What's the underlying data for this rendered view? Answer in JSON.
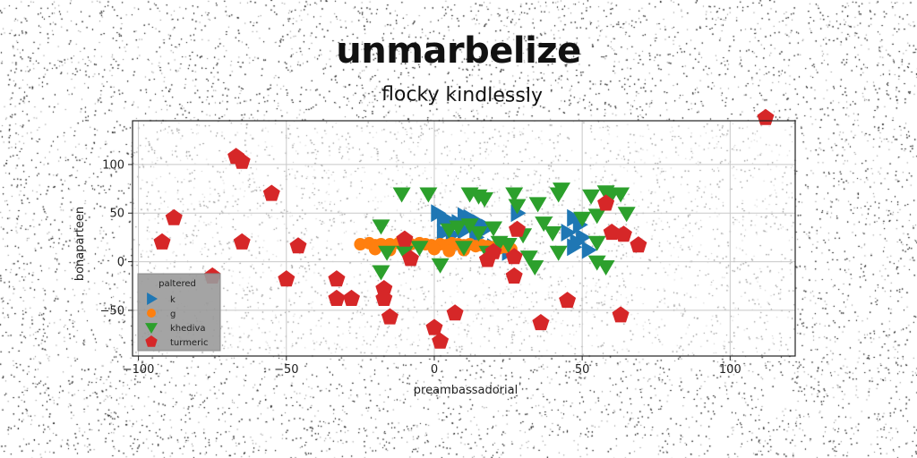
{
  "chart_data": {
    "type": "scatter",
    "title": "unmarbelize",
    "subtitle": "flocky kindlessly",
    "xlabel": "preambassadorial",
    "ylabel": "bonaparteen",
    "xlim": [
      -102,
      122
    ],
    "ylim": [
      -97,
      145
    ],
    "x_ticks": [
      -100,
      -50,
      0,
      50,
      100
    ],
    "y_ticks": [
      -50,
      0,
      50,
      100
    ],
    "grid": true,
    "legend": {
      "title": "paltered",
      "placement": "bottom-left"
    },
    "series": [
      {
        "name": "k",
        "marker": "triangle-right",
        "color": "#1f77b4",
        "points": [
          [
            1,
            50
          ],
          [
            3,
            45
          ],
          [
            5,
            42
          ],
          [
            8,
            40
          ],
          [
            10,
            47
          ],
          [
            12,
            45
          ],
          [
            15,
            40
          ],
          [
            18,
            35
          ],
          [
            28,
            50
          ],
          [
            3,
            30
          ],
          [
            6,
            28
          ],
          [
            10,
            32
          ],
          [
            14,
            25
          ],
          [
            20,
            15
          ],
          [
            25,
            10
          ],
          [
            47,
            45
          ],
          [
            49,
            38
          ],
          [
            45,
            30
          ],
          [
            50,
            25
          ],
          [
            47,
            15
          ],
          [
            52,
            12
          ],
          [
            48,
            20
          ]
        ]
      },
      {
        "name": "g",
        "marker": "circle",
        "color": "#ff7f0e",
        "points": [
          [
            -25,
            18
          ],
          [
            -22,
            19
          ],
          [
            -20,
            17
          ],
          [
            -18,
            18
          ],
          [
            -15,
            18
          ],
          [
            -12,
            19
          ],
          [
            -10,
            17
          ],
          [
            -8,
            18
          ],
          [
            -5,
            19
          ],
          [
            -3,
            18
          ],
          [
            -1,
            17
          ],
          [
            2,
            18
          ],
          [
            4,
            17
          ],
          [
            6,
            19
          ],
          [
            8,
            18
          ],
          [
            10,
            17
          ],
          [
            12,
            18
          ],
          [
            14,
            16
          ],
          [
            16,
            17
          ],
          [
            18,
            16
          ],
          [
            20,
            15
          ],
          [
            22,
            14
          ],
          [
            24,
            15
          ],
          [
            26,
            13
          ],
          [
            -20,
            13
          ],
          [
            -15,
            12
          ],
          [
            -10,
            14
          ],
          [
            0,
            13
          ],
          [
            5,
            11
          ],
          [
            10,
            12
          ]
        ]
      },
      {
        "name": "khediva",
        "marker": "triangle-down",
        "color": "#2ca02c",
        "points": [
          [
            -11,
            70
          ],
          [
            -2,
            70
          ],
          [
            12,
            70
          ],
          [
            15,
            68
          ],
          [
            17,
            65
          ],
          [
            27,
            70
          ],
          [
            28,
            58
          ],
          [
            35,
            60
          ],
          [
            37,
            40
          ],
          [
            42,
            70
          ],
          [
            43,
            75
          ],
          [
            53,
            68
          ],
          [
            58,
            72
          ],
          [
            60,
            70
          ],
          [
            63,
            70
          ],
          [
            65,
            50
          ],
          [
            -18,
            37
          ],
          [
            -16,
            10
          ],
          [
            -18,
            -10
          ],
          [
            -5,
            15
          ],
          [
            2,
            -3
          ],
          [
            5,
            33
          ],
          [
            8,
            36
          ],
          [
            12,
            38
          ],
          [
            15,
            30
          ],
          [
            20,
            35
          ],
          [
            22,
            20
          ],
          [
            18,
            10
          ],
          [
            10,
            15
          ],
          [
            25,
            18
          ],
          [
            30,
            28
          ],
          [
            32,
            5
          ],
          [
            34,
            -5
          ],
          [
            40,
            30
          ],
          [
            42,
            10
          ],
          [
            50,
            45
          ],
          [
            55,
            48
          ],
          [
            55,
            20
          ],
          [
            55,
            0
          ],
          [
            58,
            -5
          ],
          [
            -10,
            10
          ]
        ]
      },
      {
        "name": "turmeric",
        "marker": "pentagon",
        "color": "#d62728",
        "points": [
          [
            112,
            148
          ],
          [
            -67,
            108
          ],
          [
            -65,
            103
          ],
          [
            -55,
            70
          ],
          [
            -88,
            45
          ],
          [
            -92,
            20
          ],
          [
            -65,
            20
          ],
          [
            -46,
            16
          ],
          [
            -75,
            -15
          ],
          [
            -50,
            -18
          ],
          [
            -33,
            -18
          ],
          [
            -33,
            -38
          ],
          [
            -28,
            -38
          ],
          [
            -17,
            -28
          ],
          [
            -17,
            -38
          ],
          [
            -15,
            -57
          ],
          [
            -10,
            23
          ],
          [
            -8,
            3
          ],
          [
            0,
            -68
          ],
          [
            2,
            -82
          ],
          [
            7,
            -53
          ],
          [
            18,
            2
          ],
          [
            20,
            10
          ],
          [
            27,
            -15
          ],
          [
            27,
            5
          ],
          [
            28,
            33
          ],
          [
            36,
            -63
          ],
          [
            45,
            -40
          ],
          [
            58,
            60
          ],
          [
            60,
            30
          ],
          [
            64,
            28
          ],
          [
            69,
            17
          ],
          [
            63,
            -55
          ]
        ]
      }
    ]
  }
}
